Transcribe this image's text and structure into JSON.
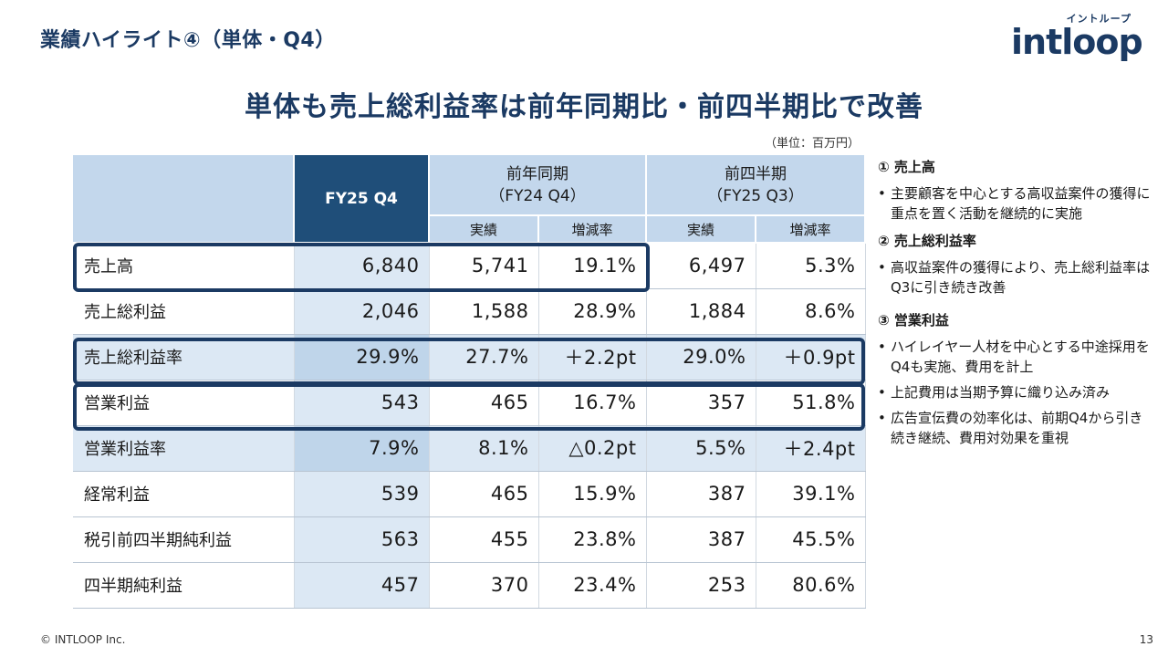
{
  "header": {
    "title": "業績ハイライト④（単体・Q4）",
    "logo_kana": "イントループ",
    "logo_word": "intloop"
  },
  "headline": "単体も売上総利益率は前年同期比・前四半期比で改善",
  "unit_note": "（単位：百万円）",
  "table": {
    "col_current": "FY25 Q4",
    "group_prev_year": {
      "line1": "前年同期",
      "line2": "（FY24 Q4）"
    },
    "group_prev_quarter": {
      "line1": "前四半期",
      "line2": "（FY25 Q3）"
    },
    "sub_actual": "実績",
    "sub_rate": "増減率",
    "rows": [
      {
        "label": "売上高",
        "cur": "6,840",
        "py": "5,741",
        "py_rate": "19.1%",
        "pq": "6,497",
        "pq_rate": "5.3%"
      },
      {
        "label": "売上総利益",
        "cur": "2,046",
        "py": "1,588",
        "py_rate": "28.9%",
        "pq": "1,884",
        "pq_rate": "8.6%"
      },
      {
        "label": "売上総利益率",
        "cur": "29.9%",
        "py": "27.7%",
        "py_rate": "＋2.2pt",
        "pq": "29.0%",
        "pq_rate": "＋0.9pt"
      },
      {
        "label": "営業利益",
        "cur": "543",
        "py": "465",
        "py_rate": "16.7%",
        "pq": "357",
        "pq_rate": "51.8%"
      },
      {
        "label": "営業利益率",
        "cur": "7.9%",
        "py": "8.1%",
        "py_rate": "△0.2pt",
        "pq": "5.5%",
        "pq_rate": "＋2.4pt"
      },
      {
        "label": "経常利益",
        "cur": "539",
        "py": "465",
        "py_rate": "15.9%",
        "pq": "387",
        "pq_rate": "39.1%"
      },
      {
        "label": "税引前四半期純利益",
        "cur": "563",
        "py": "455",
        "py_rate": "23.8%",
        "pq": "387",
        "pq_rate": "45.5%"
      },
      {
        "label": "四半期純利益",
        "cur": "457",
        "py": "370",
        "py_rate": "23.4%",
        "pq": "253",
        "pq_rate": "80.6%"
      }
    ]
  },
  "notes": [
    {
      "head": "① 売上高",
      "bullets": [
        "主要顧客を中心とする高収益案件の獲得に重点を置く活動を継続的に実施"
      ]
    },
    {
      "head": "② 売上総利益率",
      "bullets": [
        "高収益案件の獲得により、売上総利益率はQ3に引き続き改善"
      ]
    },
    {
      "head": "③ 営業利益",
      "bullets": [
        "ハイレイヤー人材を中心とする中途採用をQ4も実施、費用を計上",
        "上記費用は当期予算に織り込み済み",
        "広告宣伝費の効率化は、前期Q4から引き続き継続、費用対効果を重視"
      ]
    }
  ],
  "footer": {
    "copyright": "© INTLOOP Inc.",
    "page": "13"
  },
  "colors": {
    "navy": "#1b3a63",
    "header_dark": "#1f4e79",
    "header_light": "#c3d7ec",
    "row_shade": "#dce8f4"
  }
}
